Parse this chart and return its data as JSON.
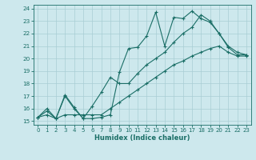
{
  "title": "",
  "xlabel": "Humidex (Indice chaleur)",
  "xlim": [
    -0.5,
    23.5
  ],
  "ylim": [
    14.7,
    24.3
  ],
  "xticks": [
    0,
    1,
    2,
    3,
    4,
    5,
    6,
    7,
    8,
    9,
    10,
    11,
    12,
    13,
    14,
    15,
    16,
    17,
    18,
    19,
    20,
    21,
    22,
    23
  ],
  "yticks": [
    15,
    16,
    17,
    18,
    19,
    20,
    21,
    22,
    23,
    24
  ],
  "bg_color": "#cde8ed",
  "grid_color": "#a8cdd4",
  "line_color": "#1a6e66",
  "line1_x": [
    0,
    1,
    2,
    3,
    4,
    5,
    6,
    7,
    8,
    9,
    10,
    11,
    12,
    13,
    14,
    15,
    16,
    17,
    18,
    19,
    20,
    21,
    22,
    23
  ],
  "line1_y": [
    15.3,
    16.0,
    15.2,
    17.1,
    16.1,
    15.2,
    15.2,
    15.3,
    15.5,
    18.9,
    20.8,
    20.9,
    21.8,
    23.7,
    21.0,
    23.3,
    23.2,
    23.8,
    23.2,
    22.9,
    22.0,
    20.9,
    20.3,
    20.3
  ],
  "line2_x": [
    0,
    1,
    2,
    3,
    4,
    5,
    6,
    7,
    8,
    9,
    10,
    11,
    12,
    13,
    14,
    15,
    16,
    17,
    18,
    19,
    20,
    21,
    22,
    23
  ],
  "line2_y": [
    15.3,
    15.8,
    15.2,
    17.0,
    16.0,
    15.2,
    16.2,
    17.3,
    18.5,
    18.0,
    18.0,
    18.8,
    19.5,
    20.0,
    20.5,
    21.3,
    22.0,
    22.5,
    23.5,
    23.0,
    22.0,
    21.0,
    20.5,
    20.3
  ],
  "line3_x": [
    0,
    1,
    2,
    3,
    4,
    5,
    6,
    7,
    8,
    9,
    10,
    11,
    12,
    13,
    14,
    15,
    16,
    17,
    18,
    19,
    20,
    21,
    22,
    23
  ],
  "line3_y": [
    15.3,
    15.5,
    15.2,
    15.5,
    15.5,
    15.5,
    15.5,
    15.5,
    16.0,
    16.5,
    17.0,
    17.5,
    18.0,
    18.5,
    19.0,
    19.5,
    19.8,
    20.2,
    20.5,
    20.8,
    21.0,
    20.5,
    20.2,
    20.2
  ]
}
